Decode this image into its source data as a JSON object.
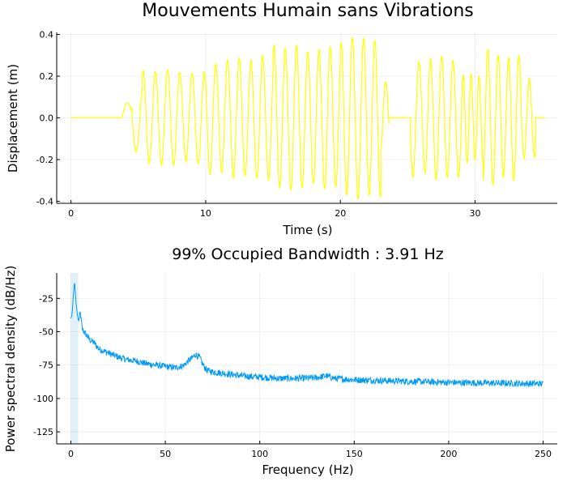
{
  "chart_data": [
    {
      "type": "line",
      "title": "Mouvements Humain sans Vibrations",
      "xlabel": "Time (s)",
      "ylabel": "Displacement (m)",
      "xlim": [
        -1.06,
        36.1
      ],
      "ylim": [
        -0.41,
        0.41
      ],
      "xticks": [
        0,
        10,
        20,
        30
      ],
      "xtick_labels": [
        "0",
        "10",
        "20",
        "30"
      ],
      "yticks": [
        -0.4,
        -0.2,
        0.0,
        0.2,
        0.4
      ],
      "ytick_labels": [
        "-0.4",
        "-0.2",
        "0.0",
        "0.2",
        "0.4"
      ],
      "grid": true,
      "legend": "none",
      "series": [
        {
          "color": "#ffff00",
          "segments": [
            {
              "t0": 0.0,
              "t1": 3.8,
              "amp": 0.0,
              "freq": 0,
              "noise": 0
            },
            {
              "t0": 3.8,
              "t1": 4.5,
              "amp": 0.07,
              "freq": 0.6,
              "noise": 0
            },
            {
              "t0": 4.5,
              "t1": 5.3,
              "amp": 0.16,
              "freq": 0.9,
              "noise": 0.02
            },
            {
              "t0": 5.3,
              "t1": 10.0,
              "amp": 0.22,
              "freq": 1.1,
              "noise": 0.03
            },
            {
              "t0": 10.0,
              "t1": 15.0,
              "amp": 0.28,
              "freq": 1.15,
              "noise": 0.04
            },
            {
              "t0": 15.0,
              "t1": 20.0,
              "amp": 0.34,
              "freq": 1.2,
              "noise": 0.04
            },
            {
              "t0": 20.0,
              "t1": 23.0,
              "amp": 0.37,
              "freq": 1.2,
              "noise": 0.03
            },
            {
              "t0": 23.0,
              "t1": 23.6,
              "amp": 0.17,
              "freq": 1.2,
              "noise": 0.02
            },
            {
              "t0": 23.6,
              "t1": 25.2,
              "amp": 0.0,
              "freq": 0,
              "noise": 0
            },
            {
              "t0": 25.2,
              "t1": 26.3,
              "amp": 0.28,
              "freq": 1.1,
              "noise": 0.04
            },
            {
              "t0": 26.3,
              "t1": 29.0,
              "amp": 0.3,
              "freq": 1.2,
              "noise": 0.05
            },
            {
              "t0": 29.0,
              "t1": 30.6,
              "amp": 0.2,
              "freq": 1.7,
              "noise": 0.06
            },
            {
              "t0": 30.6,
              "t1": 33.5,
              "amp": 0.3,
              "freq": 1.3,
              "noise": 0.05
            },
            {
              "t0": 33.5,
              "t1": 34.5,
              "amp": 0.2,
              "freq": 1.3,
              "noise": 0.03
            },
            {
              "t0": 34.5,
              "t1": 35.2,
              "amp": 0.0,
              "freq": 0,
              "noise": 0
            }
          ]
        }
      ]
    },
    {
      "type": "line",
      "title": "99% Occupied Bandwidth : 3.91 Hz",
      "xlabel": "Frequency (Hz)",
      "ylabel": "Power spectral density (dB/Hz)",
      "xlim": [
        -7.5,
        257.5
      ],
      "ylim": [
        -134,
        -6
      ],
      "xticks": [
        0,
        50,
        100,
        150,
        200,
        250
      ],
      "xtick_labels": [
        "0",
        "50",
        "100",
        "150",
        "200",
        "250"
      ],
      "yticks": [
        -125,
        -100,
        -75,
        -50,
        -25
      ],
      "ytick_labels": [
        "-125",
        "-100",
        "-75",
        "-50",
        "-25"
      ],
      "grid": true,
      "legend": "none",
      "occupied_band": [
        0,
        3.91
      ],
      "band_color": "#d8ecf8",
      "series": [
        {
          "color": "#009af9",
          "points": [
            [
              0.0,
              -40
            ],
            [
              0.5,
              -38
            ],
            [
              1.0,
              -30
            ],
            [
              1.3,
              -22
            ],
            [
              1.6,
              -18
            ],
            [
              1.9,
              -12
            ],
            [
              2.2,
              -18
            ],
            [
              2.6,
              -26
            ],
            [
              3.0,
              -32
            ],
            [
              3.5,
              -38
            ],
            [
              4.0,
              -42
            ],
            [
              5,
              -36
            ],
            [
              6,
              -48
            ],
            [
              8,
              -52
            ],
            [
              10,
              -56
            ],
            [
              12,
              -58
            ],
            [
              15,
              -63
            ],
            [
              20,
              -66
            ],
            [
              25,
              -69
            ],
            [
              30,
              -71
            ],
            [
              35,
              -72
            ],
            [
              40,
              -74
            ],
            [
              45,
              -75
            ],
            [
              50,
              -76
            ],
            [
              55,
              -77
            ],
            [
              58,
              -76
            ],
            [
              60,
              -75
            ],
            [
              62,
              -72
            ],
            [
              64,
              -70
            ],
            [
              66,
              -67
            ],
            [
              68,
              -69
            ],
            [
              70,
              -75
            ],
            [
              72,
              -79
            ],
            [
              75,
              -80
            ],
            [
              80,
              -81
            ],
            [
              90,
              -83
            ],
            [
              100,
              -84
            ],
            [
              110,
              -85
            ],
            [
              120,
              -85
            ],
            [
              130,
              -84.5
            ],
            [
              135,
              -83
            ],
            [
              140,
              -85
            ],
            [
              150,
              -86
            ],
            [
              175,
              -87
            ],
            [
              200,
              -88
            ],
            [
              225,
              -88.5
            ],
            [
              250,
              -89
            ]
          ],
          "noise_db": 2.5
        }
      ]
    }
  ]
}
